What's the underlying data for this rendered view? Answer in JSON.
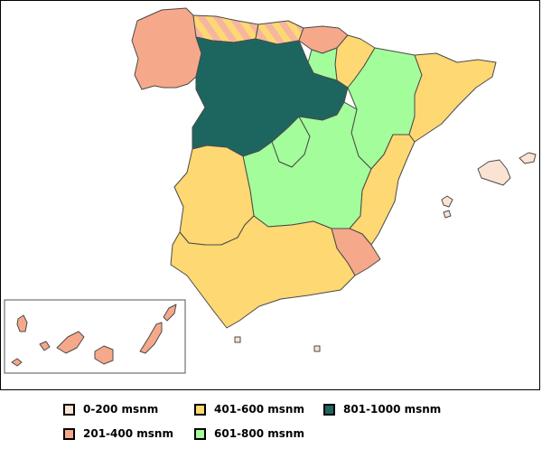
{
  "map": {
    "colors": {
      "c0_200": "#fbe3d4",
      "c201_400": "#f5a98a",
      "c401_600": "#fdd873",
      "c601_800": "#a3fd9a",
      "c801_1000": "#1d6660",
      "hatch": "#f5b6a0",
      "outline": "#4a4a4a"
    }
  },
  "legend": [
    {
      "label": "0-200 msnm",
      "color": "#fbe3d4"
    },
    {
      "label": "401-600 msnm",
      "color": "#fdd873"
    },
    {
      "label": "801-1000 msnm",
      "color": "#1d6660"
    },
    {
      "label": "201-400 msnm",
      "color": "#f5a98a"
    },
    {
      "label": "601-800 msnm",
      "color": "#a3fd9a"
    }
  ]
}
